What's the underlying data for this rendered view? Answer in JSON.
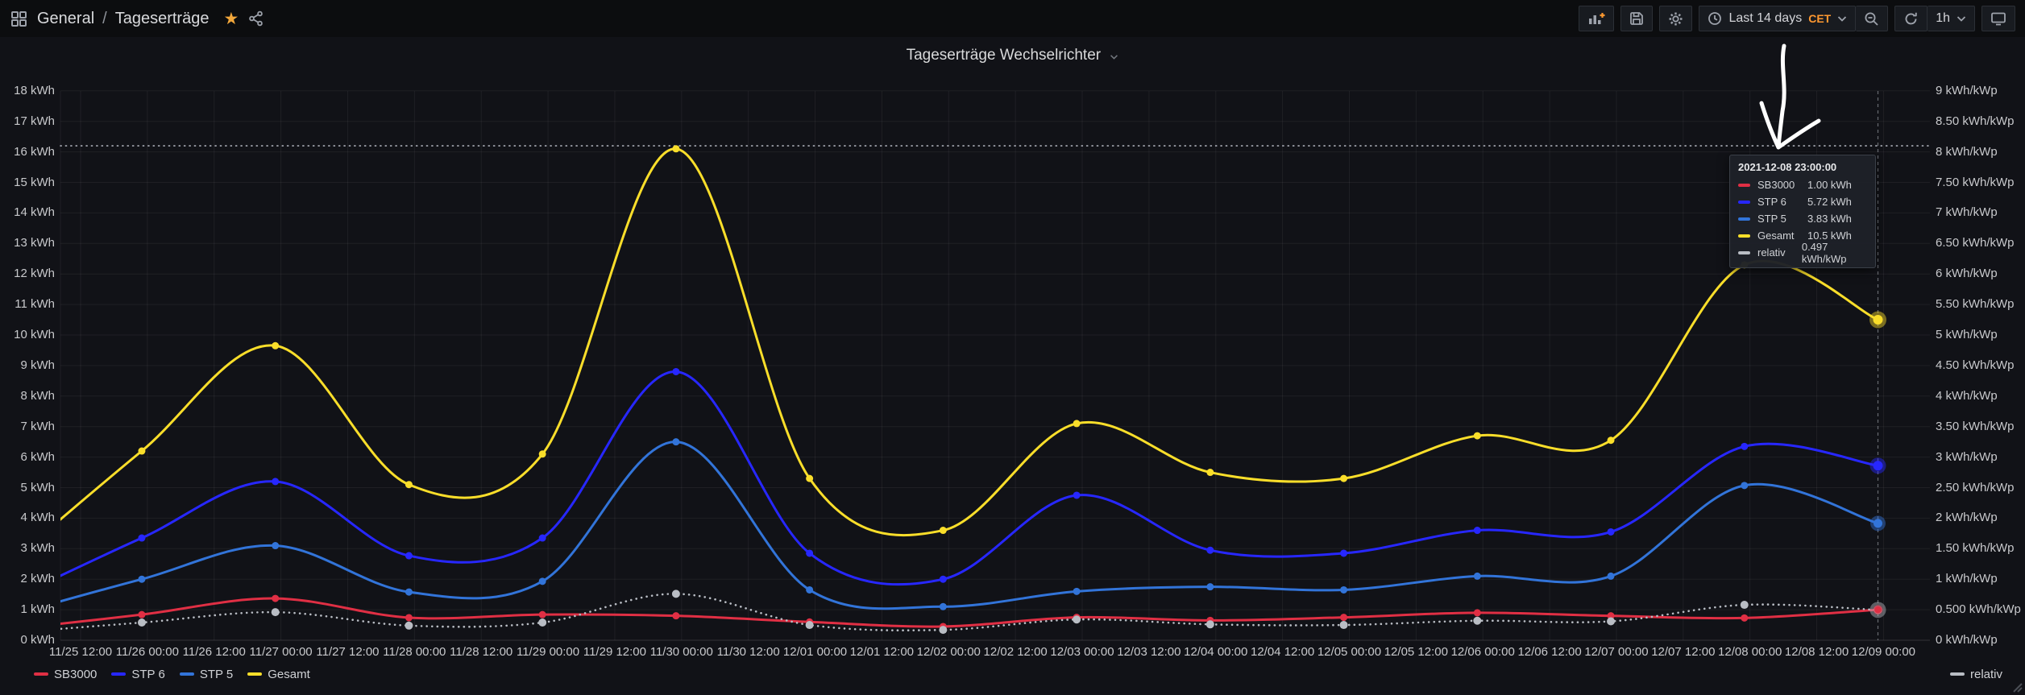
{
  "header": {
    "breadcrumb": {
      "folder": "General",
      "separator": "/",
      "page": "Tageserträge"
    },
    "toolbar": {
      "time_range": {
        "label": "Last 14 days",
        "timezone": "CET"
      },
      "refresh_interval": "1h"
    }
  },
  "panel": {
    "title": "Tageserträge Wechselrichter"
  },
  "chart_data": {
    "type": "line",
    "title": "Tageserträge Wechselrichter",
    "x_tick_labels": [
      "11/25 12:00",
      "11/26 00:00",
      "11/26 12:00",
      "11/27 00:00",
      "11/27 12:00",
      "11/28 00:00",
      "11/28 12:00",
      "11/29 00:00",
      "11/29 12:00",
      "11/30 00:00",
      "11/30 12:00",
      "12/01 00:00",
      "12/01 12:00",
      "12/02 00:00",
      "12/02 12:00",
      "12/03 00:00",
      "12/03 12:00",
      "12/04 00:00",
      "12/04 12:00",
      "12/05 00:00",
      "12/05 12:00",
      "12/06 00:00",
      "12/06 12:00",
      "12/07 00:00",
      "12/07 12:00",
      "12/08 00:00",
      "12/08 12:00",
      "12/09 00:00"
    ],
    "y_left": {
      "unit": "kWh",
      "min": 0,
      "max": 18,
      "step": 1,
      "tick_labels": [
        "0 kWh",
        "1 kWh",
        "2 kWh",
        "3 kWh",
        "4 kWh",
        "5 kWh",
        "6 kWh",
        "7 kWh",
        "8 kWh",
        "9 kWh",
        "10 kWh",
        "11 kWh",
        "12 kWh",
        "13 kWh",
        "14 kWh",
        "15 kWh",
        "16 kWh",
        "17 kWh",
        "18 kWh"
      ]
    },
    "y_right": {
      "unit": "kWh/kWp",
      "min": 0,
      "max": 9,
      "step": 0.5,
      "tick_labels": [
        "0 kWh/kWp",
        "0.500 kWh/kWp",
        "1 kWh/kWp",
        "1.50 kWh/kWp",
        "2 kWh/kWp",
        "2.50 kWh/kWp",
        "3 kWh/kWp",
        "3.50 kWh/kWp",
        "4 kWh/kWp",
        "4.50 kWh/kWp",
        "5 kWh/kWp",
        "5.50 kWh/kWp",
        "6 kWh/kWp",
        "6.50 kWh/kWp",
        "7 kWh/kWp",
        "7.50 kWh/kWp",
        "8 kWh/kWp",
        "8.50 kWh/kWp",
        "9 kWh/kWp"
      ]
    },
    "timestamps": [
      "2021-11-25 23:00",
      "2021-11-26 23:00",
      "2021-11-27 23:00",
      "2021-11-28 23:00",
      "2021-11-29 23:00",
      "2021-11-30 23:00",
      "2021-12-01 23:00",
      "2021-12-02 23:00",
      "2021-12-03 23:00",
      "2021-12-04 23:00",
      "2021-12-05 23:00",
      "2021-12-06 23:00",
      "2021-12-07 23:00",
      "2021-12-08 23:00"
    ],
    "series": [
      {
        "name": "SB3000",
        "color": "#e02f44",
        "axis": "left",
        "line_style": "solid",
        "values": [
          0.84,
          1.37,
          0.74,
          0.84,
          0.8,
          0.6,
          0.45,
          0.75,
          0.65,
          0.75,
          0.9,
          0.8,
          0.73,
          1.0
        ],
        "lead_in": 0.35
      },
      {
        "name": "STP 6",
        "color": "#2727ff",
        "axis": "left",
        "line_style": "solid",
        "values": [
          3.35,
          5.2,
          2.77,
          3.35,
          8.8,
          2.85,
          2.0,
          4.75,
          2.95,
          2.85,
          3.6,
          3.55,
          6.35,
          5.72
        ],
        "lead_in": 1.3
      },
      {
        "name": "STP 5",
        "color": "#3274d9",
        "axis": "left",
        "line_style": "solid",
        "values": [
          2.0,
          3.1,
          1.58,
          1.93,
          6.5,
          1.65,
          1.1,
          1.6,
          1.75,
          1.65,
          2.1,
          2.1,
          5.07,
          3.83
        ],
        "lead_in": 0.8
      },
      {
        "name": "Gesamt",
        "color": "#fade2a",
        "axis": "left",
        "line_style": "solid",
        "values": [
          6.2,
          9.65,
          5.1,
          6.1,
          16.1,
          5.3,
          3.6,
          7.1,
          5.5,
          5.3,
          6.7,
          6.55,
          12.3,
          10.5
        ],
        "lead_in": 2.5
      },
      {
        "name": "relativ",
        "color": "#b9bdc4",
        "axis": "right",
        "line_style": "dotted",
        "values": [
          0.29,
          0.46,
          0.24,
          0.29,
          0.76,
          0.25,
          0.17,
          0.34,
          0.26,
          0.25,
          0.32,
          0.31,
          0.58,
          0.497
        ],
        "lead_in": 0.12
      }
    ],
    "max_reference_line": {
      "value_kwh": 16.2,
      "style": "dotted"
    },
    "crosshair": {
      "at_timestamp": "2021-12-08 23:00:00",
      "x_tick_label": "12/09 00:00"
    },
    "grid": true,
    "legend_position": "bottom"
  },
  "tooltip": {
    "title": "2021-12-08 23:00:00",
    "rows": [
      {
        "series": "SB3000",
        "value": "1.00 kWh"
      },
      {
        "series": "STP 6",
        "value": "5.72 kWh"
      },
      {
        "series": "STP 5",
        "value": "3.83 kWh"
      },
      {
        "series": "Gesamt",
        "value": "10.5 kWh"
      },
      {
        "series": "relativ",
        "value": "0.497 kWh/kWp"
      }
    ]
  },
  "legend": {
    "left": [
      {
        "label": "SB3000",
        "color": "#e02f44"
      },
      {
        "label": "STP 6",
        "color": "#2727ff"
      },
      {
        "label": "STP 5",
        "color": "#3274d9"
      },
      {
        "label": "Gesamt",
        "color": "#fade2a"
      }
    ],
    "right": [
      {
        "label": "relativ",
        "color": "#b9bdc4"
      }
    ]
  },
  "colors": {
    "background": "#111217",
    "nav_background": "#0c0d0f",
    "grid_line": "rgba(255,255,255,0.06)",
    "text_primary": "#d8d9da",
    "text_secondary": "#9da2ab",
    "accent_orange": "#ff9830",
    "favorite_star": "#f2a73b",
    "crosshair": "rgba(210,215,225,0.45)"
  }
}
